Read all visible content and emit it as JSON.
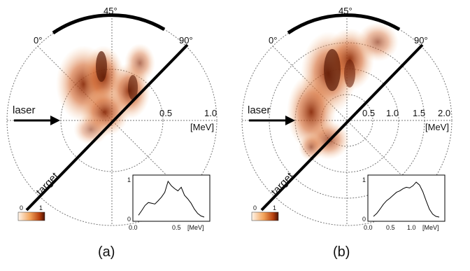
{
  "panels": [
    {
      "label": "(a)",
      "angles": [
        "0°",
        "45°",
        "90°"
      ],
      "radial_ticks": [
        "0.5",
        "1.0"
      ],
      "unit": "[MeV]",
      "laser_label": "laser",
      "target_label": "target",
      "colorbar": {
        "min": "0",
        "max": "1"
      },
      "inset": {
        "y_tick": "1",
        "y_zero": "0",
        "x_ticks": [
          "0.0",
          "0.5"
        ],
        "unit": "[MeV]",
        "curve": [
          0.05,
          0.18,
          0.32,
          0.4,
          0.38,
          0.36,
          0.45,
          0.55,
          0.68,
          0.98,
          0.86,
          0.78,
          0.72,
          0.82,
          0.6,
          0.5,
          0.38,
          0.22,
          0.1,
          0.03,
          0.0
        ]
      }
    },
    {
      "label": "(b)",
      "angles": [
        "0°",
        "45°",
        "90°"
      ],
      "radial_ticks": [
        "0.5",
        "1.0",
        "1.5",
        "2.0"
      ],
      "unit": "[MeV]",
      "laser_label": "laser",
      "target_label": "target",
      "colorbar": {
        "min": "0",
        "max": "1"
      },
      "inset": {
        "y_tick": "1",
        "y_zero": "0",
        "x_ticks": [
          "0.0",
          "0.5",
          "1.0"
        ],
        "unit": "[MeV]",
        "curve": [
          0.02,
          0.1,
          0.22,
          0.35,
          0.45,
          0.52,
          0.6,
          0.68,
          0.72,
          0.78,
          0.82,
          0.8,
          0.86,
          0.96,
          0.88,
          0.7,
          0.45,
          0.22,
          0.08,
          0.02,
          0.0
        ]
      }
    }
  ],
  "colors": {
    "dark": "#5a1a06",
    "mid": "#c24f14",
    "light": "#f4b47a",
    "ink": "#111111"
  }
}
